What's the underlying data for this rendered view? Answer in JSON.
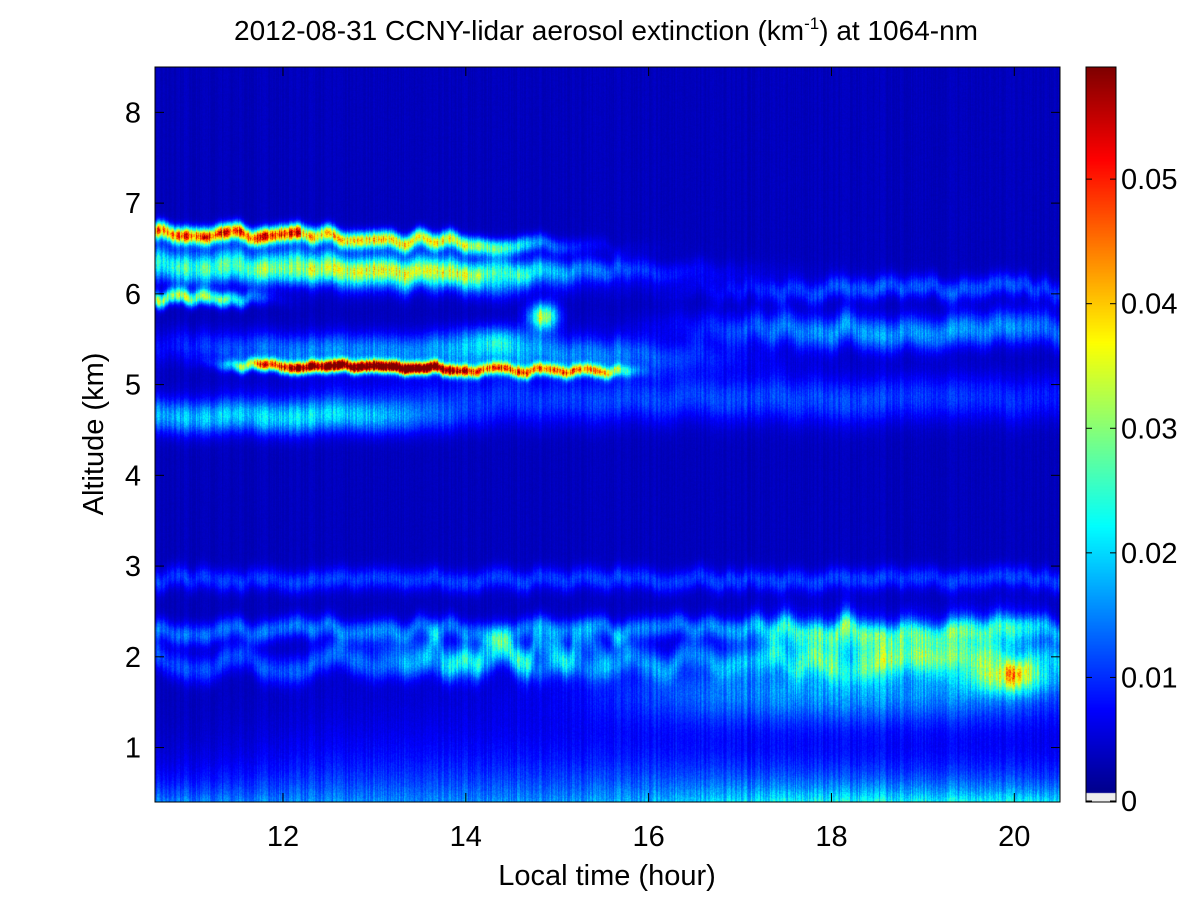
{
  "chart_data": {
    "type": "heatmap",
    "title": "2012-08-31 CCNY-lidar aerosol extinction (km-1) at 1064-nm",
    "title_parts": {
      "pre": "2012-08-31 CCNY-lidar aerosol extinction (km",
      "sup": "-1",
      "post": ") at 1064-nm"
    },
    "xlabel": "Local time (hour)",
    "ylabel": "Altitude (km)",
    "xlim": [
      10.6,
      20.5
    ],
    "ylim": [
      0.4,
      8.5
    ],
    "xticks": [
      12,
      14,
      16,
      18,
      20
    ],
    "yticks": [
      1,
      2,
      3,
      4,
      5,
      6,
      7,
      8
    ],
    "colorbar": {
      "range": [
        0,
        0.059
      ],
      "ticks": [
        0,
        0.01,
        0.02,
        0.03,
        0.04,
        0.05
      ],
      "tick_labels": [
        "0",
        "0.01",
        "0.02",
        "0.03",
        "0.04",
        "0.05"
      ],
      "colormap": "jet"
    },
    "features": [
      {
        "name": "upper aerosol layer",
        "time": [
          10.6,
          14.5
        ],
        "altitude_km": [
          5.8,
          6.8
        ],
        "peak_extinction": 0.05
      },
      {
        "name": "mid aerosol layer",
        "time": [
          11.5,
          15.8
        ],
        "altitude_km": [
          5.05,
          5.35
        ],
        "peak_extinction": 0.055
      },
      {
        "name": "plume",
        "time": [
          14.6,
          15.1
        ],
        "altitude_km": [
          5.5,
          5.9
        ],
        "peak_extinction": 0.035
      },
      {
        "name": "boundary layer top",
        "time": [
          17.3,
          20.5
        ],
        "altitude_km": [
          1.5,
          2.6
        ],
        "peak_extinction": 0.022
      },
      {
        "name": "near-surface aerosol",
        "time": [
          11.5,
          16.5
        ],
        "altitude_km": [
          0.4,
          1.0
        ],
        "peak_extinction": 0.022
      }
    ]
  }
}
